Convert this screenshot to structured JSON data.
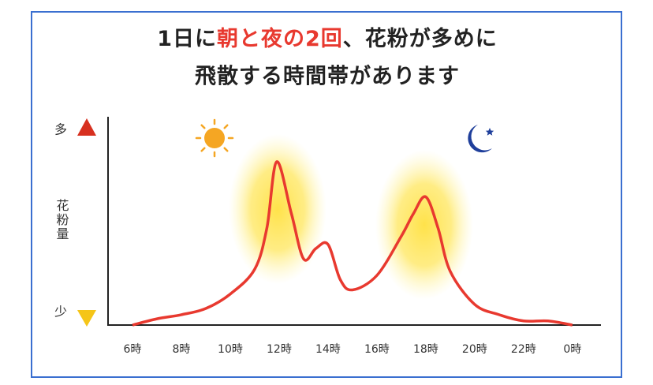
{
  "chart_data": {
    "type": "line",
    "title": {
      "line1": [
        "1日に",
        "朝と夜の2回",
        "、花粉が多めに"
      ],
      "line2": "飛散する時間帯があります"
    },
    "y_axis_label": {
      "high": "多",
      "label": "花粉量",
      "low": "少"
    },
    "x": [
      6,
      7,
      8,
      9,
      10,
      11,
      11.5,
      11.9,
      12.5,
      13,
      13.5,
      14,
      14.5,
      15,
      16,
      17,
      17.5,
      18,
      18.5,
      19,
      20,
      21,
      22,
      23,
      24
    ],
    "values": [
      0,
      3,
      5,
      8,
      15,
      27,
      47,
      79,
      54,
      32,
      37,
      39,
      22,
      17,
      24,
      43,
      54,
      62,
      47,
      26,
      10,
      5,
      2,
      2,
      0
    ],
    "color": "#e8392f",
    "xlim": [
      5,
      25.2
    ],
    "xticks": [
      {
        "value": 6,
        "label": "6時"
      },
      {
        "value": 8,
        "label": "8時"
      },
      {
        "value": 10,
        "label": "10時"
      },
      {
        "value": 12,
        "label": "12時"
      },
      {
        "value": 14,
        "label": "14時"
      },
      {
        "value": 16,
        "label": "16時"
      },
      {
        "value": 18,
        "label": "18時"
      },
      {
        "value": 20,
        "label": "20時"
      },
      {
        "value": 22,
        "label": "22時"
      },
      {
        "value": 24,
        "label": "0時"
      }
    ],
    "ylim": [
      0,
      100
    ],
    "grid": false
  }
}
